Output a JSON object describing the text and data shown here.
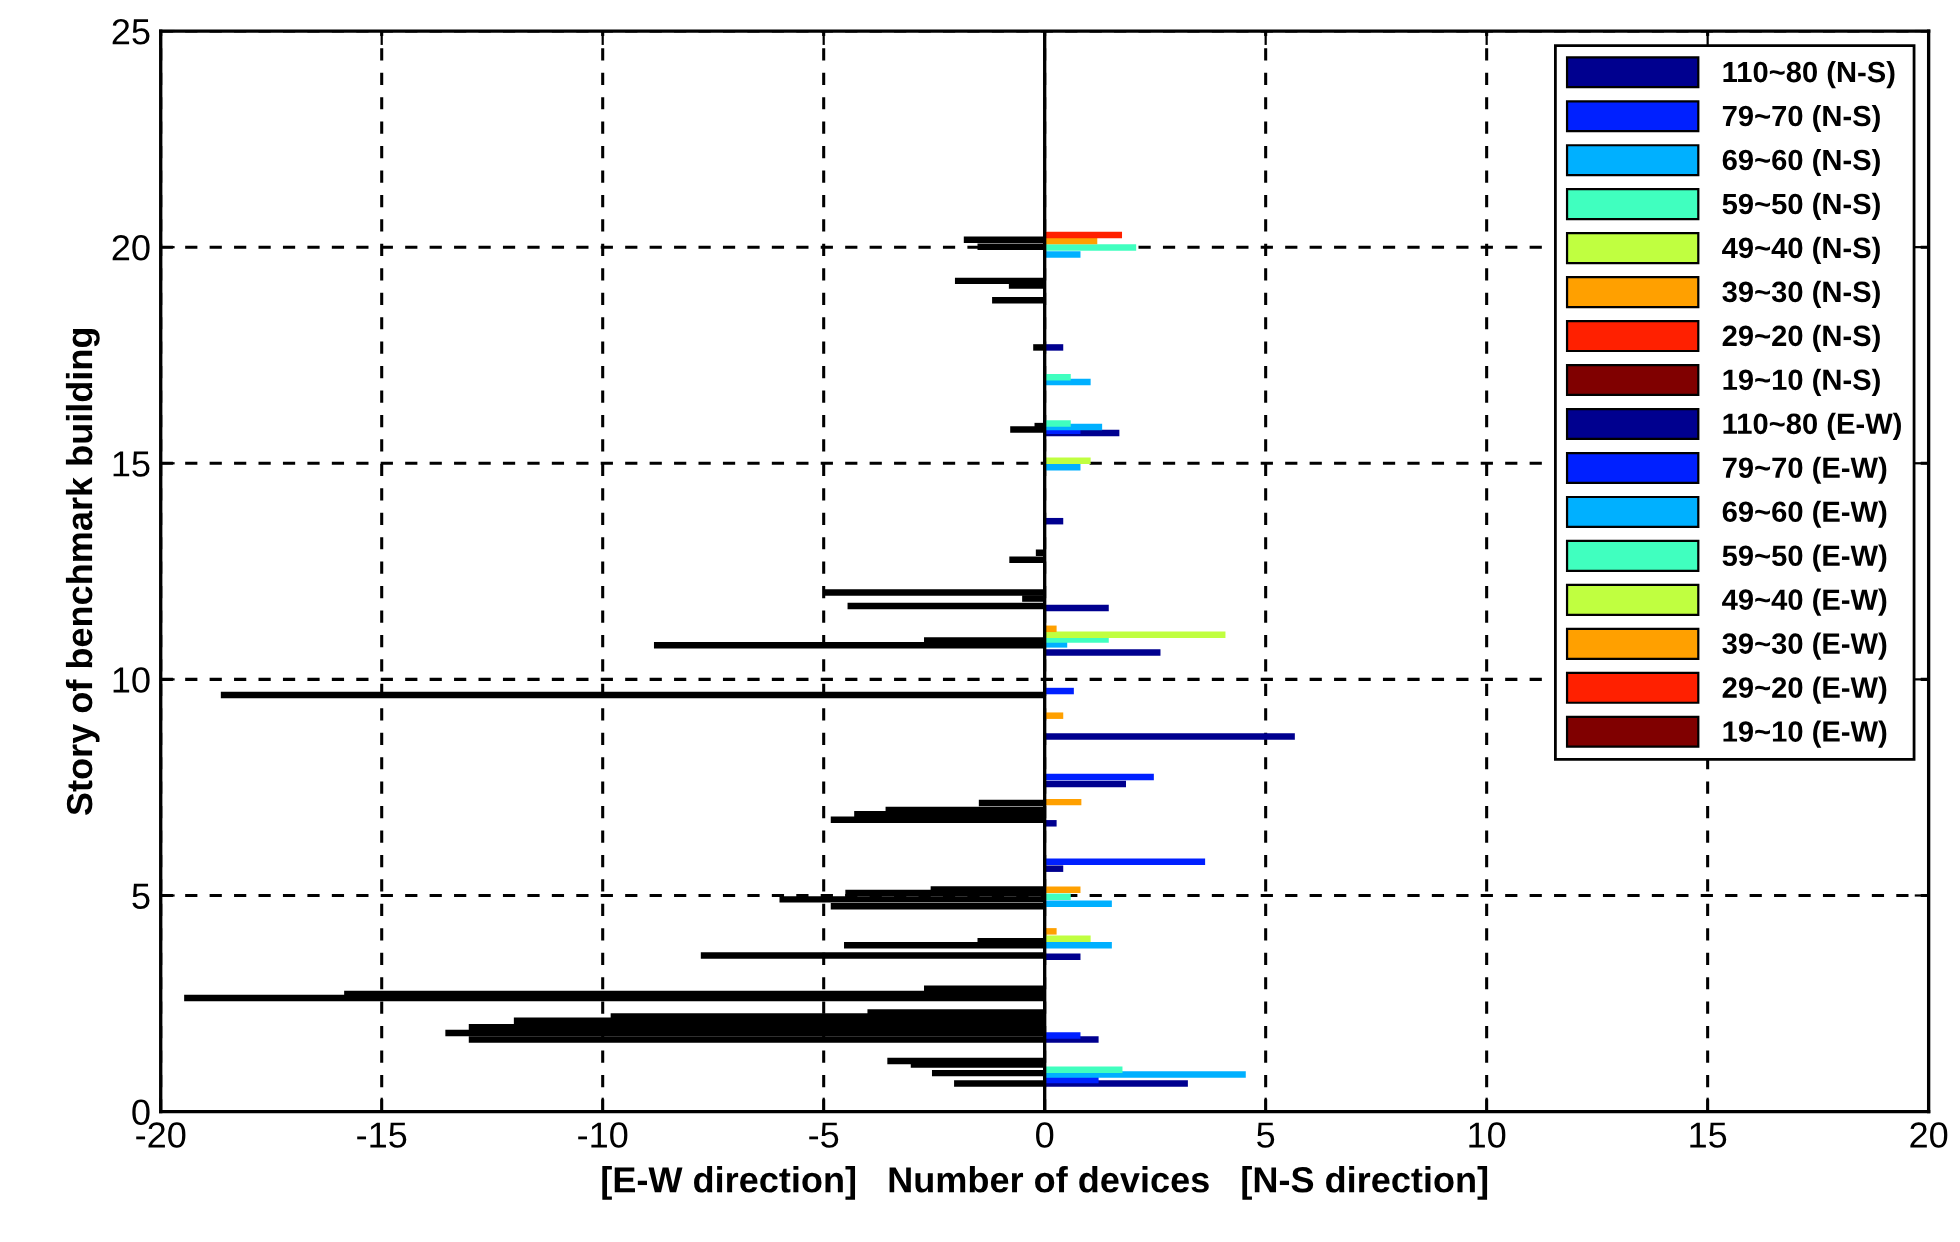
{
  "chart_data": {
    "type": "bar",
    "orientation": "horizontal",
    "xlabel": "[E-W direction]   Number of devices   [N-S direction]",
    "ylabel": "Story of benchmark building",
    "xlim": [
      -20,
      20
    ],
    "xticks": [
      -20,
      -15,
      -10,
      -5,
      0,
      5,
      10,
      15,
      20
    ],
    "ylim": [
      0,
      25
    ],
    "yticks": [
      0,
      5,
      10,
      15,
      20,
      25
    ],
    "grid": true,
    "legend": "top right",
    "ref_lines": [
      {
        "axis": "x",
        "value": 0,
        "color": "#000000",
        "line_style": "solid"
      }
    ],
    "series": [
      {
        "name": "110~80 (N-S)",
        "color": "#00008f",
        "x": [
          17.68,
          15.7,
          13.66,
          11.65,
          10.62,
          8.68,
          7.58,
          6.67,
          5.62,
          3.58,
          1.67,
          0.65
        ],
        "values": [
          0.42,
          1.69,
          0.42,
          1.45,
          2.62,
          5.66,
          1.84,
          0.27,
          0.42,
          0.81,
          1.22,
          3.24
        ]
      },
      {
        "name": "79~70 (N-S)",
        "color": "#0020ff",
        "x": [
          15.75,
          9.73,
          7.74,
          5.78,
          1.76,
          0.73
        ],
        "values": [
          0.81,
          0.66,
          2.47,
          3.63,
          0.81,
          1.22
        ]
      },
      {
        "name": "69~60 (N-S)",
        "color": "#00b0ff",
        "x": [
          19.83,
          16.88,
          15.84,
          14.91,
          10.81,
          4.81,
          3.85,
          0.86
        ],
        "values": [
          0.81,
          1.04,
          1.3,
          0.81,
          0.51,
          1.52,
          1.52,
          4.55
        ]
      },
      {
        "name": "59~50 (N-S)",
        "color": "#40ffbf",
        "x": [
          19.99,
          16.99,
          15.92,
          10.92,
          4.97,
          0.97
        ],
        "values": [
          2.07,
          0.59,
          0.59,
          1.45,
          0.59,
          1.76
        ]
      },
      {
        "name": "49~40 (N-S)",
        "color": "#c0ff40",
        "x": [
          15.06,
          11.03,
          4.0
        ],
        "values": [
          1.04,
          4.09,
          1.04
        ]
      },
      {
        "name": "39~30 (N-S)",
        "color": "#ffa000",
        "x": [
          20.14,
          11.17,
          9.16,
          7.16,
          5.13,
          4.17
        ],
        "values": [
          1.19,
          0.27,
          0.42,
          0.83,
          0.81,
          0.27
        ]
      },
      {
        "name": "29~20 (N-S)",
        "color": "#ff2000",
        "x": [
          20.28
        ],
        "values": [
          1.75
        ]
      },
      {
        "name": "19~10 (N-S)",
        "color": "#800000"
      },
      {
        "name": "110~80 (E-W)",
        "color": "#00008f"
      },
      {
        "name": "79~70 (E-W)",
        "color": "#0020ff"
      },
      {
        "name": "69~60 (E-W)",
        "color": "#00b0ff"
      },
      {
        "name": "59~50 (E-W)",
        "color": "#40ffbf"
      },
      {
        "name": "49~40 (E-W)",
        "color": "#c0ff40"
      },
      {
        "name": "39~30 (E-W)",
        "color": "#ffa000"
      },
      {
        "name": "29~20 (E-W)",
        "color": "#ff2000"
      },
      {
        "name": "19~10 (E-W)",
        "color": "#800000"
      },
      {
        "color": "#000000",
        "x": [
          20.17,
          20.01,
          19.22,
          19.11,
          18.77,
          17.68,
          15.86,
          15.78,
          12.93,
          12.77,
          12.01,
          11.87,
          11.7,
          10.9,
          10.79,
          9.64,
          7.14,
          6.98,
          6.88,
          6.75,
          5.14,
          5.06,
          4.91,
          4.75,
          3.94,
          3.85,
          3.61,
          2.84,
          2.72,
          2.63,
          2.29,
          2.2,
          2.1,
          1.95,
          1.82,
          1.67,
          1.17,
          1.09,
          0.89,
          0.65
        ],
        "values": [
          -1.83,
          -1.52,
          -2.03,
          -0.81,
          -1.19,
          -0.26,
          -0.23,
          -0.78,
          -0.2,
          -0.8,
          -4.98,
          -0.51,
          -4.46,
          -2.73,
          -8.84,
          -18.64,
          -1.49,
          -3.6,
          -4.31,
          -4.84,
          -2.58,
          -4.51,
          -6.0,
          -4.84,
          -1.52,
          -4.54,
          -7.78,
          -2.73,
          -15.85,
          -19.47,
          -4.01,
          -9.82,
          -12.01,
          -13.03,
          -13.56,
          -13.03,
          -3.56,
          -3.03,
          -2.55,
          -2.05
        ]
      }
    ]
  }
}
